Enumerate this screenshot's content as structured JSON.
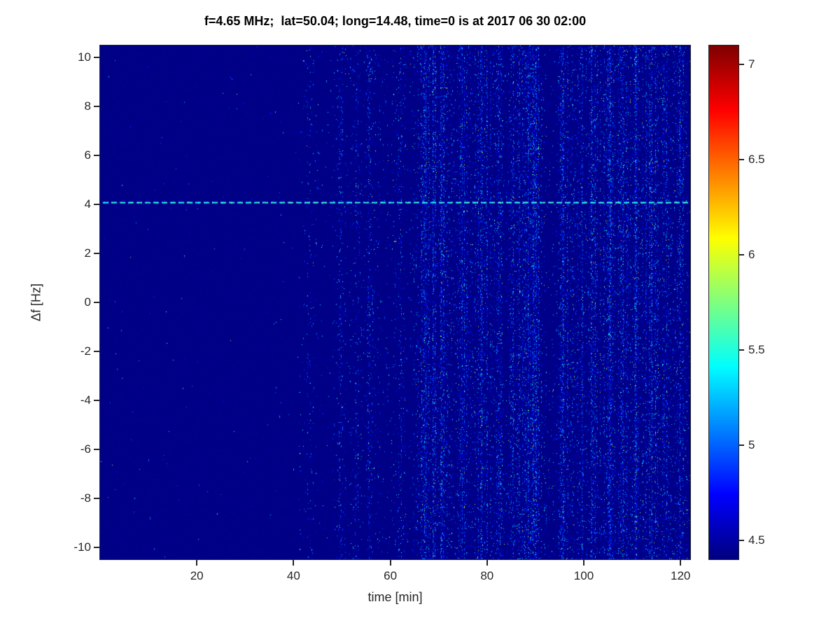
{
  "chart_data": {
    "type": "heatmap",
    "title": "f=4.65 MHz;  lat=50.04; long=14.48, time=0 is at 2017 06 30 02:00",
    "xlabel": "time [min]",
    "ylabel": "Δf [Hz]",
    "xlim": [
      0,
      122
    ],
    "ylim": [
      -10.5,
      10.5
    ],
    "xticks": [
      20,
      40,
      60,
      80,
      100,
      120
    ],
    "yticks": [
      10,
      8,
      6,
      4,
      2,
      0,
      -2,
      -4,
      -6,
      -8,
      -10
    ],
    "grid": false,
    "colormap": "jet",
    "background": "#ffffff",
    "axis_color": "#262626",
    "colorbar": {
      "position": "right",
      "range": [
        4.4,
        7.1
      ],
      "ticks": [
        4.5,
        5,
        5.5,
        6,
        6.5,
        7
      ]
    },
    "background_value": 4.42,
    "spectral_line": {
      "y_hz": 4.1,
      "value": 5.6,
      "style": "bright cyan horizontal line with dark dashed overlay spanning the full time range"
    },
    "noise": {
      "description": "sparse blue speckle noise arranged in vertical streaks; quiet before ~40 min, ramping up 40-65 min, densest from ~65 to 122 min",
      "speckle_value_range": [
        4.5,
        6.2
      ],
      "base_density": 0.0012,
      "ramp_start_min": 40,
      "dense_start_min": 65,
      "dense_density": 0.022,
      "streak_times_min": [
        43,
        50,
        53,
        56,
        62,
        67,
        69,
        71,
        75,
        79,
        82,
        86,
        88,
        90,
        96,
        99,
        102,
        105,
        108,
        111,
        114,
        117,
        120
      ]
    }
  }
}
